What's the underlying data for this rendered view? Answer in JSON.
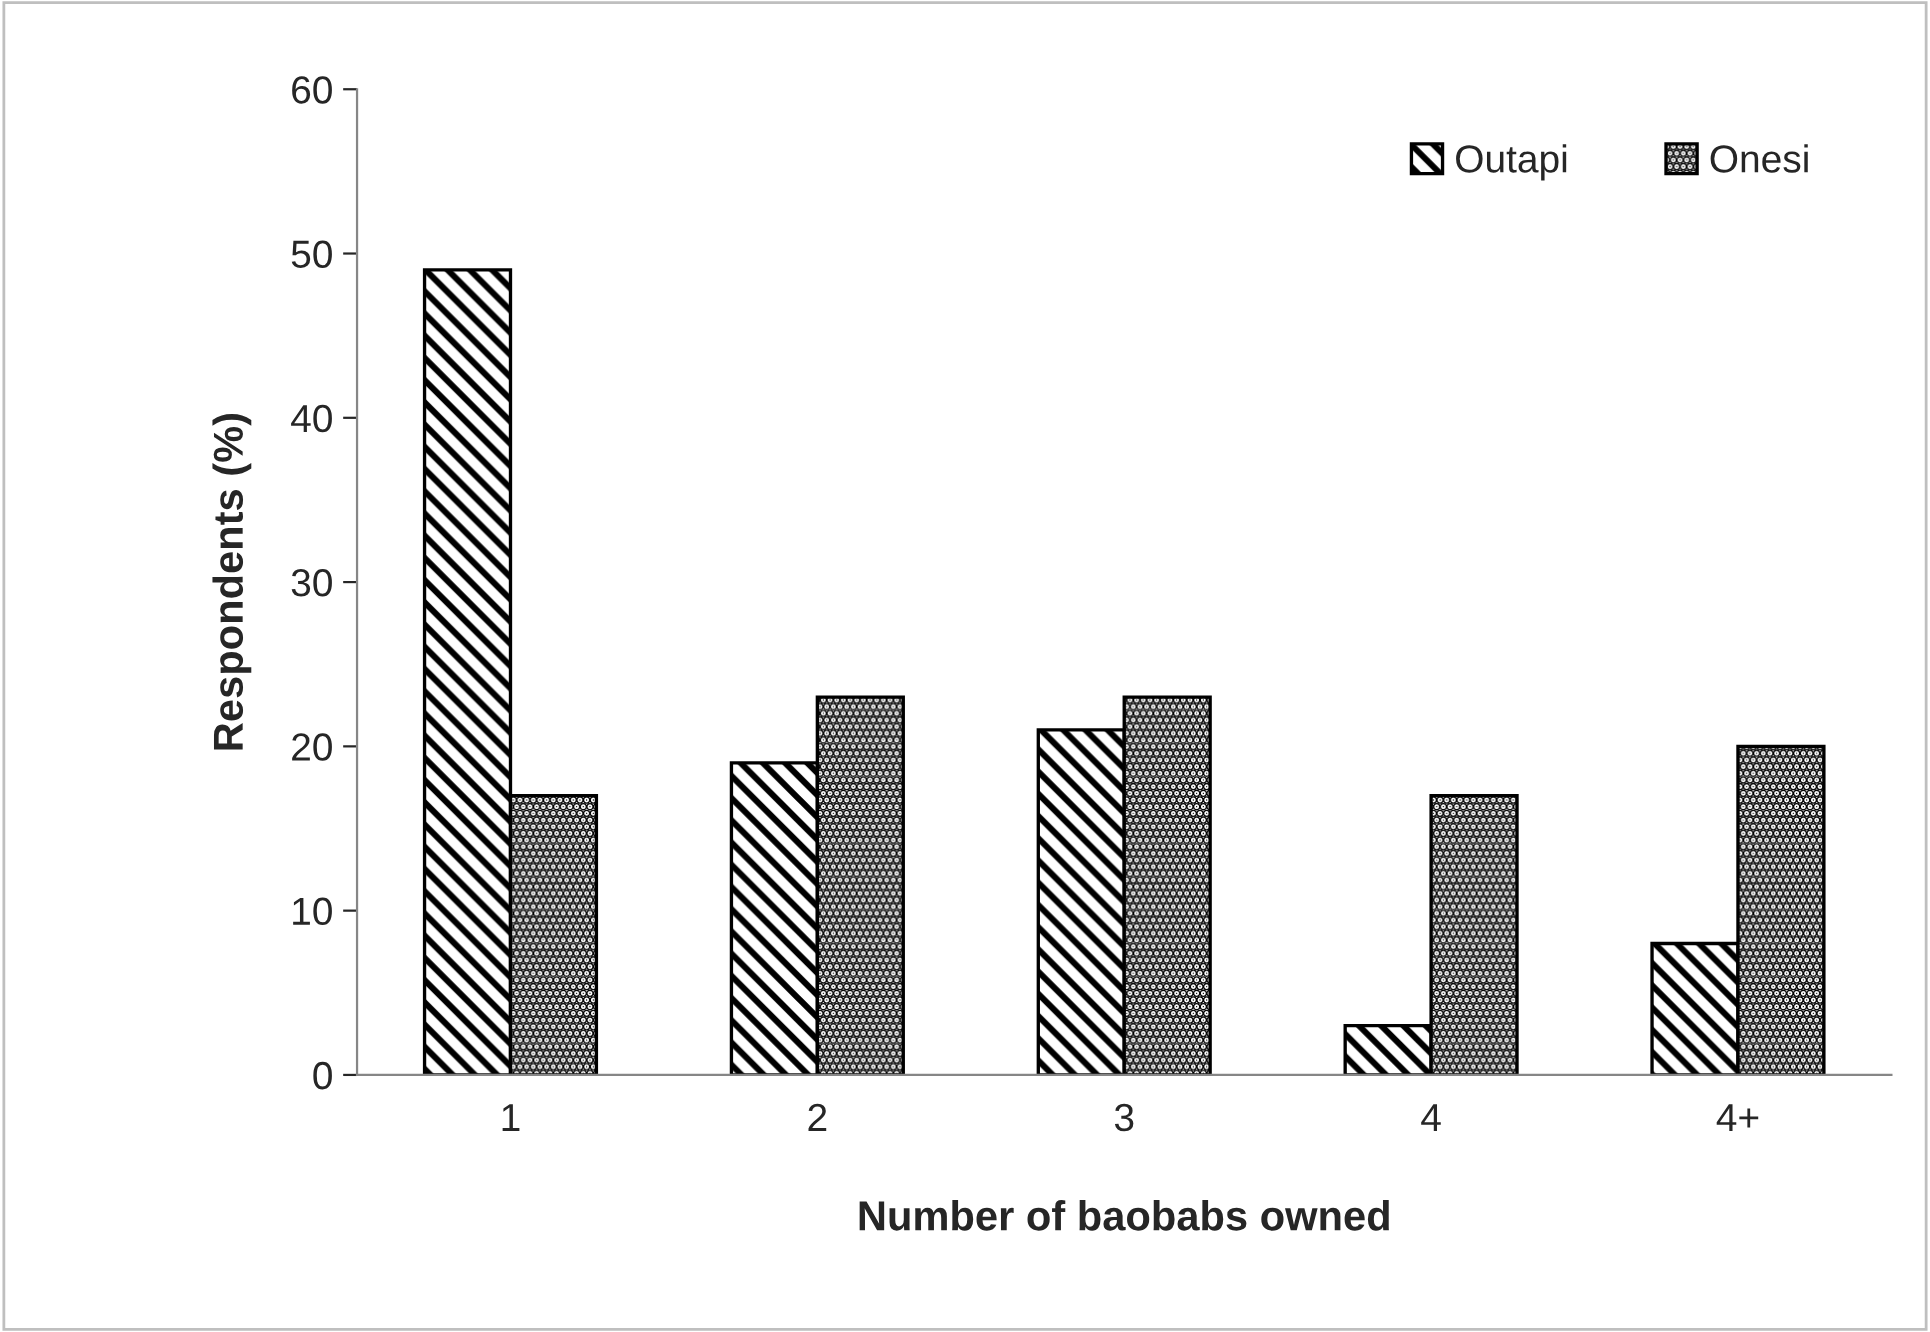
{
  "chart_data": {
    "type": "bar",
    "xlabel": "Number of baobabs owned",
    "ylabel": "Respondents (%)",
    "categories": [
      "1",
      "2",
      "3",
      "4",
      "4+"
    ],
    "series": [
      {
        "name": "Outapi",
        "color": "#000000",
        "values": [
          49,
          19,
          21,
          3,
          8
        ]
      },
      {
        "name": "Onesi",
        "color": "#000000",
        "values": [
          17,
          23,
          23,
          17,
          20
        ]
      }
    ],
    "ylim": [
      0,
      60
    ],
    "yticks": [
      0,
      10,
      20,
      30,
      40,
      50,
      60
    ],
    "grid": false,
    "legend": "top right"
  }
}
